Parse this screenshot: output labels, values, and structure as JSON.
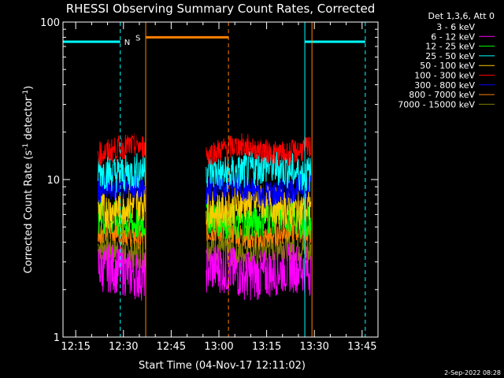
{
  "chart_data": {
    "type": "line",
    "title": "RHESSI Observing Summary Count Rates, Corrected",
    "xlabel": "Start Time (04-Nov-17 12:11:02)",
    "ylabel": "Corrected Count Rate (s⁻¹ detector⁻¹)",
    "ylabel_main": "Corrected Count Rate (s",
    "ylabel_sup1": "-1",
    "ylabel_mid": " detector",
    "ylabel_sup2": "-1",
    "ylabel_end": ")",
    "y_scale": "log",
    "ylim": [
      1,
      100
    ],
    "xlim": [
      "12:11",
      "13:50"
    ],
    "x_ticks": [
      "12:15",
      "12:30",
      "12:45",
      "13:00",
      "13:15",
      "13:30",
      "13:45"
    ],
    "y_ticks": [
      "1",
      "10",
      "100"
    ],
    "legend_title": "Det 1,3,6, Att 0",
    "legend_placement": "right",
    "footer_date": "2-Sep-2022 08:28",
    "segments": [
      {
        "start": "12:22",
        "end": "12:37"
      },
      {
        "start": "12:56",
        "end": "13:29"
      }
    ],
    "series": [
      {
        "name": "3 - 6 keV",
        "color": "#000000",
        "level": 21,
        "spread": 0.09
      },
      {
        "name": "6 - 12 keV",
        "color": "#ff00ff",
        "level": 2.6,
        "spread": 0.16
      },
      {
        "name": "12 - 25 keV",
        "color": "#00ff00",
        "level": 5.6,
        "spread": 0.12
      },
      {
        "name": "25 - 50 keV",
        "color": "#00ffff",
        "level": 11.5,
        "spread": 0.12
      },
      {
        "name": "50 - 100 keV",
        "color": "#ffcc00",
        "level": 6.8,
        "spread": 0.12
      },
      {
        "name": "100 - 300 keV",
        "color": "#ff0000",
        "level": 15.5,
        "spread": 0.08
      },
      {
        "name": "300 - 800 keV",
        "color": "#0000ff",
        "level": 8.6,
        "spread": 0.09
      },
      {
        "name": "800 - 7000 keV",
        "color": "#ff8000",
        "level": 4.5,
        "spread": 0.08
      },
      {
        "name": "7000 - 15000 keV",
        "color": "#808000",
        "level": 3.6,
        "spread": 0.1
      }
    ],
    "annotations": [
      {
        "label": "N",
        "kind": "night",
        "start": "12:11",
        "end": "12:29",
        "color": "#00ffff",
        "level": 75
      },
      {
        "label": "",
        "kind": "night",
        "start": "13:27",
        "end": "13:46",
        "color": "#00ffff",
        "level": 75
      },
      {
        "label": "S",
        "kind": "saa",
        "start": "12:37",
        "end": "13:03",
        "color": "#ff8000",
        "level": 80
      }
    ]
  }
}
